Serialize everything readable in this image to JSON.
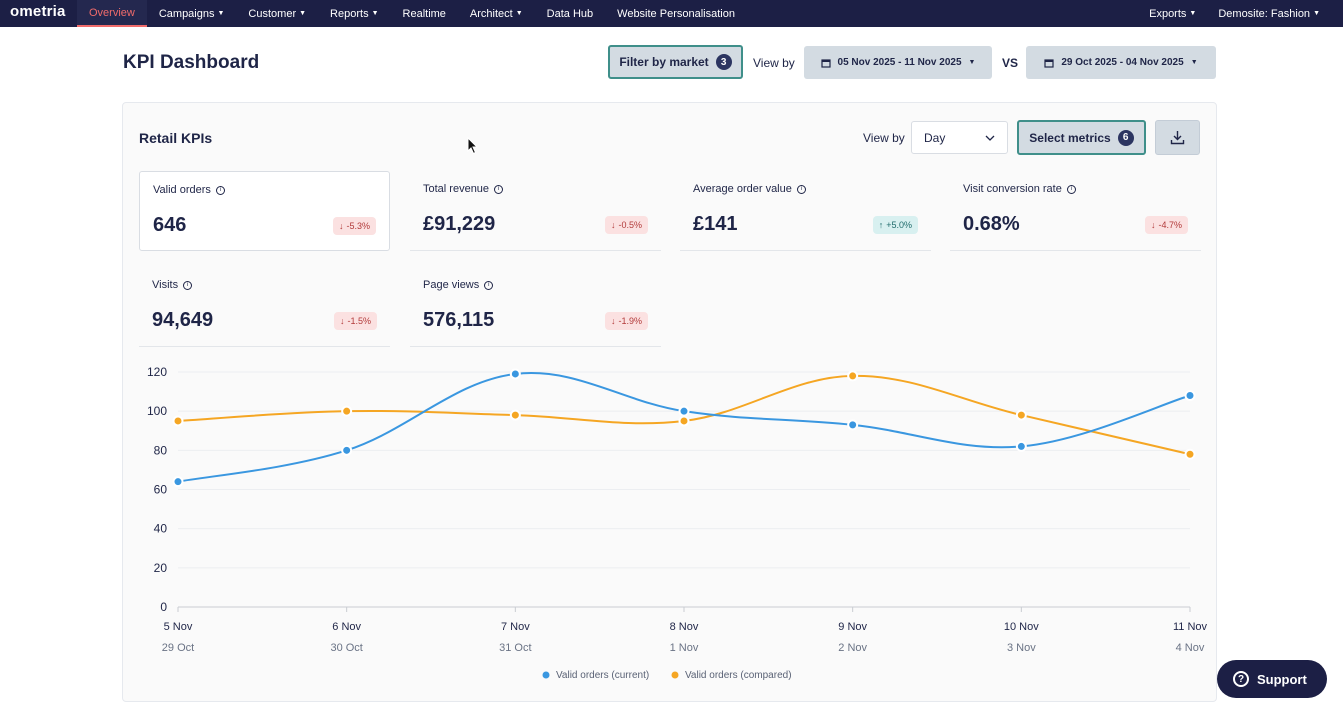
{
  "nav": {
    "logo": "ometria",
    "items": [
      {
        "label": "Overview",
        "caret": false,
        "active": true
      },
      {
        "label": "Campaigns",
        "caret": true
      },
      {
        "label": "Customer",
        "caret": true
      },
      {
        "label": "Reports",
        "caret": true
      },
      {
        "label": "Realtime",
        "caret": false
      },
      {
        "label": "Architect",
        "caret": true
      },
      {
        "label": "Data Hub",
        "caret": false
      },
      {
        "label": "Website Personalisation",
        "caret": false
      }
    ],
    "right": [
      {
        "label": "Exports",
        "caret": true
      },
      {
        "label": "Demosite: Fashion",
        "caret": true
      }
    ]
  },
  "header": {
    "title": "KPI Dashboard",
    "filter_label": "Filter by market",
    "filter_count": "3",
    "view_by_label": "View by",
    "date_current": "05 Nov 2025 - 11 Nov 2025",
    "vs_label": "VS",
    "date_compared": "29 Oct 2025 - 04 Nov 2025"
  },
  "card": {
    "title": "Retail KPIs",
    "view_by_label": "View by",
    "granularity": "Day",
    "metrics_label": "Select metrics",
    "metrics_count": "6"
  },
  "kpis": [
    {
      "label": "Valid orders",
      "value": "646",
      "delta": "-5.3%",
      "direction": "down"
    },
    {
      "label": "Total revenue",
      "value": "£91,229",
      "delta": "-0.5%",
      "direction": "down"
    },
    {
      "label": "Average order value",
      "value": "£141",
      "delta": "+5.0%",
      "direction": "up"
    },
    {
      "label": "Visit conversion rate",
      "value": "0.68%",
      "delta": "-4.7%",
      "direction": "down"
    },
    {
      "label": "Visits",
      "value": "94,649",
      "delta": "-1.5%",
      "direction": "down"
    },
    {
      "label": "Page views",
      "value": "576,115",
      "delta": "-1.9%",
      "direction": "down"
    }
  ],
  "chart_data": {
    "type": "line",
    "x": [
      "5 Nov",
      "6 Nov",
      "7 Nov",
      "8 Nov",
      "9 Nov",
      "10 Nov",
      "11 Nov"
    ],
    "x_secondary": [
      "29 Oct",
      "30 Oct",
      "31 Oct",
      "1 Nov",
      "2 Nov",
      "3 Nov",
      "4 Nov"
    ],
    "yticks": [
      0,
      20,
      40,
      60,
      80,
      100,
      120
    ],
    "ylim": [
      0,
      120
    ],
    "grid": true,
    "legend_position": "bottom-center",
    "series": [
      {
        "name": "Valid orders (current)",
        "color": "#3a97e0",
        "values": [
          64,
          80,
          119,
          100,
          93,
          82,
          108
        ]
      },
      {
        "name": "Valid orders (compared)",
        "color": "#f5a623",
        "values": [
          95,
          100,
          98,
          95,
          118,
          98,
          78
        ]
      }
    ]
  },
  "support": {
    "label": "Support"
  }
}
